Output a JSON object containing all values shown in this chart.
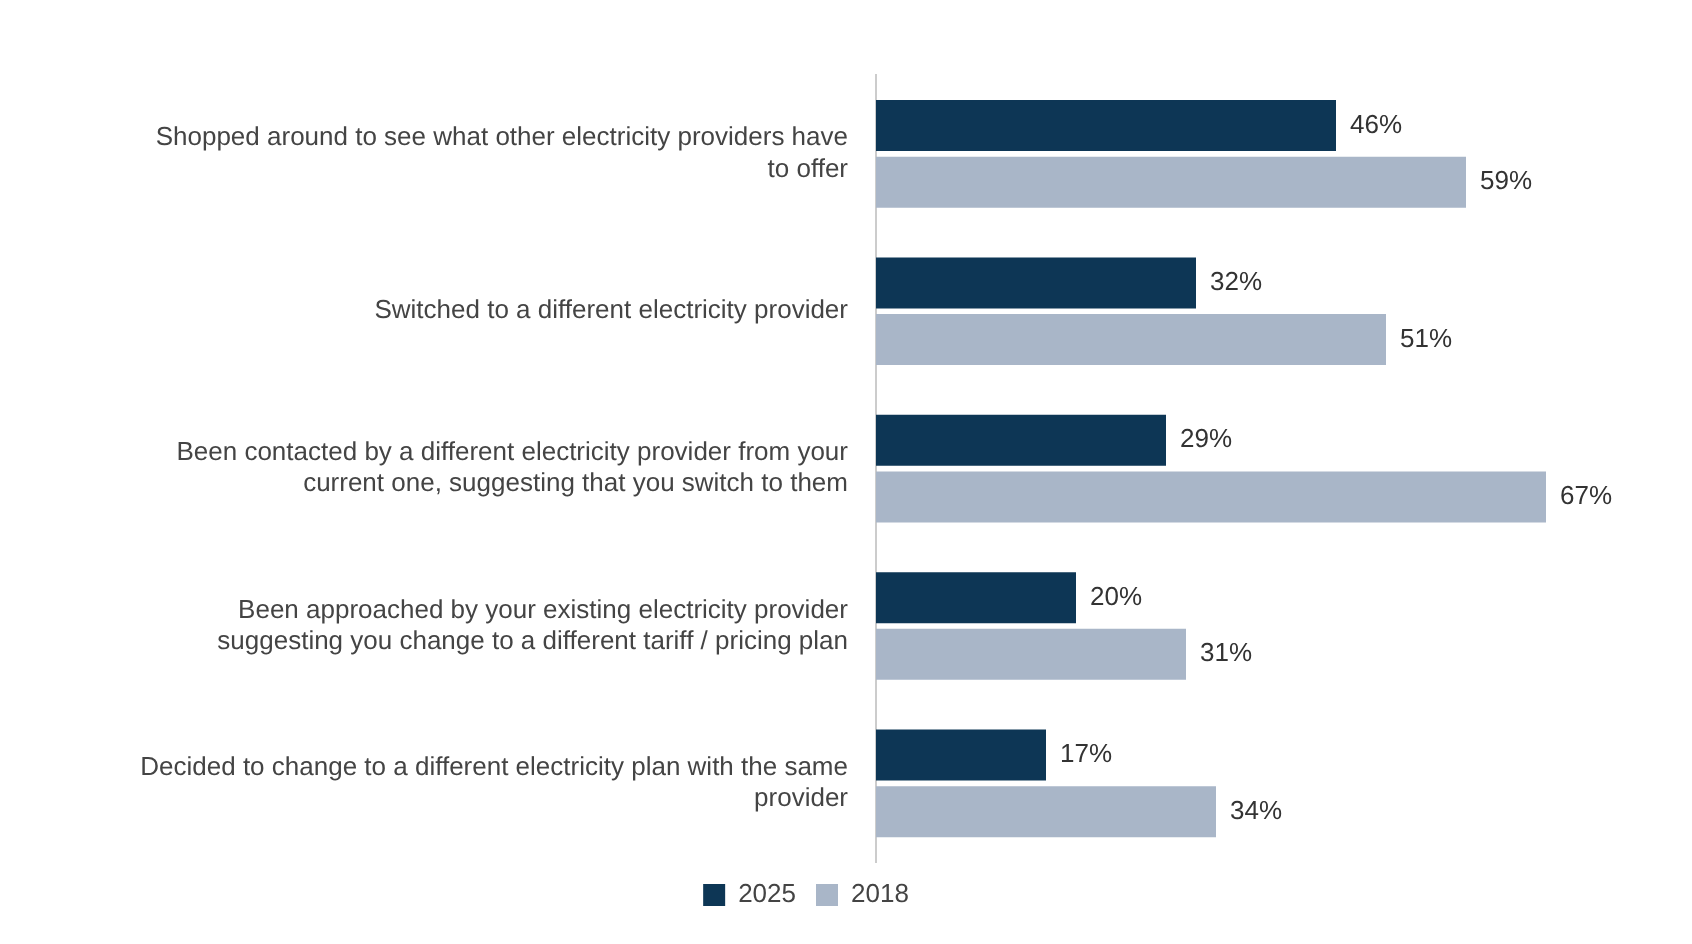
{
  "chart_data": {
    "type": "bar",
    "orientation": "horizontal",
    "categories": [
      "Shopped around to see what other electricity providers have to offer",
      "Switched to a different electricity provider",
      "Been contacted by a different electricity provider from your current one, suggesting that you switch to them",
      "Been approached by your existing electricity provider suggesting you change to a different tariff / pricing plan",
      "Decided to change to a different electricity plan with the same provider"
    ],
    "series": [
      {
        "name": "2025",
        "color": "#0d3655",
        "values": [
          46,
          32,
          29,
          20,
          17
        ],
        "value_labels": [
          "46%",
          "32%",
          "29%",
          "20%",
          "17%"
        ]
      },
      {
        "name": "2018",
        "color": "#a9b6c8",
        "values": [
          59,
          51,
          67,
          31,
          34
        ],
        "value_labels": [
          "59%",
          "51%",
          "67%",
          "31%",
          "34%"
        ]
      }
    ],
    "legend": "bottom",
    "grid": false,
    "tick_labels": "y"
  }
}
